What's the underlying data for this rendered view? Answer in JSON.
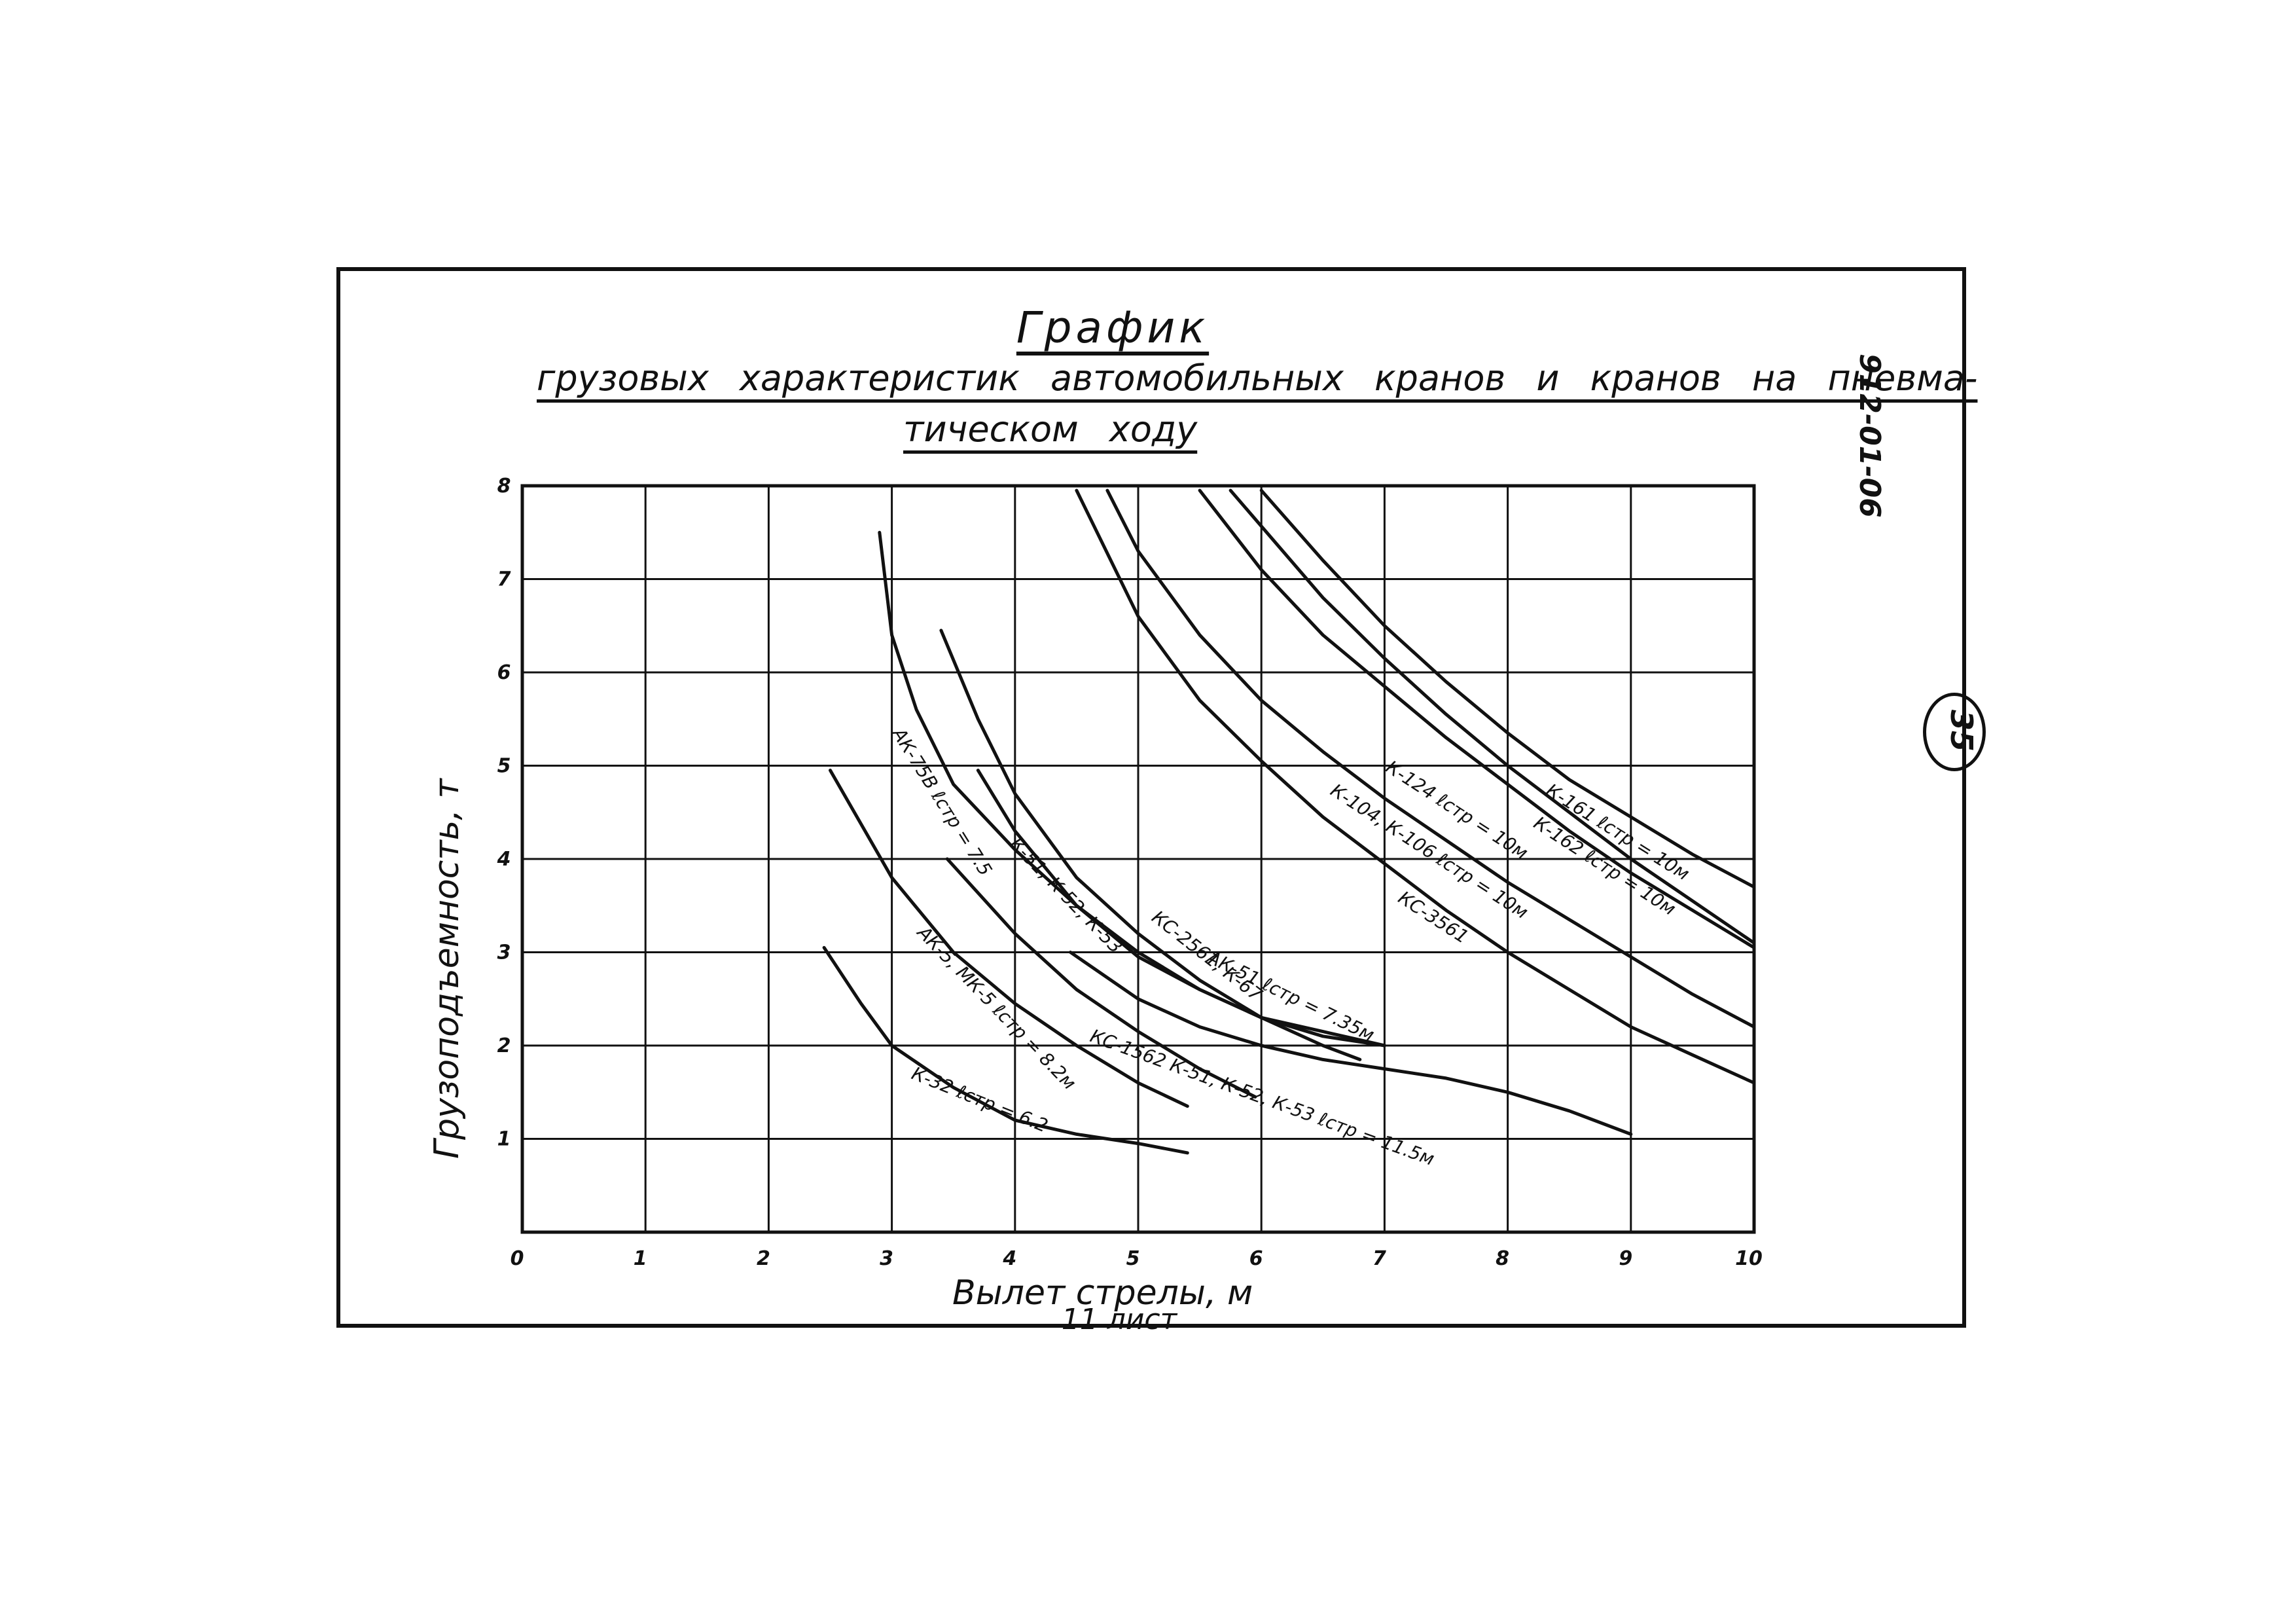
{
  "header": {
    "title": "График",
    "subtitle_line1": "грузовых характеристик автомобильных кранов и кранов на пневма-",
    "subtitle_line2": "тическом ходу",
    "doc_number": "912-01-06",
    "page_number": "35",
    "sheet_label": "11 лист"
  },
  "chart_data": {
    "type": "line",
    "title": "График грузовых характеристик автомобильных кранов и кранов на пневматическом ходу",
    "xlabel": "Вылет стрелы, м",
    "ylabel": "Грузоподъемность, т",
    "xlim": [
      0,
      10
    ],
    "ylim": [
      0,
      8
    ],
    "x_ticks": [
      "0",
      "1",
      "2",
      "3",
      "4",
      "5",
      "6",
      "7",
      "8",
      "9",
      "10"
    ],
    "y_ticks": [
      "1",
      "2",
      "3",
      "4",
      "5",
      "6",
      "7",
      "8"
    ],
    "grid": true,
    "series": [
      {
        "name": "К-161  ℓстр = 10м",
        "label_at": [
          8.3,
          4.7
        ],
        "label_angle": 32,
        "x": [
          6.0,
          6.5,
          7.0,
          7.5,
          8.0,
          8.5,
          9.0,
          9.5,
          10.0
        ],
        "y": [
          7.95,
          7.2,
          6.5,
          5.9,
          5.35,
          4.85,
          4.45,
          4.05,
          3.7
        ]
      },
      {
        "name": "К-162  ℓстр = 10м",
        "label_at": [
          8.2,
          4.35
        ],
        "label_angle": 33,
        "x": [
          5.75,
          6.5,
          7.0,
          7.5,
          8.0,
          8.5,
          9.0,
          9.5,
          10.0
        ],
        "y": [
          7.95,
          6.8,
          6.15,
          5.55,
          5.0,
          4.5,
          4.0,
          3.55,
          3.1
        ]
      },
      {
        "name": "К-124  ℓстр = 10м",
        "label_at": [
          7.0,
          4.95
        ],
        "label_angle": 33,
        "x": [
          5.5,
          6.0,
          6.5,
          7.0,
          7.5,
          8.0,
          8.5,
          9.0,
          9.5,
          10.0
        ],
        "y": [
          7.95,
          7.1,
          6.4,
          5.85,
          5.3,
          4.8,
          4.3,
          3.85,
          3.45,
          3.05
        ]
      },
      {
        "name": "К-104, К-106  ℓстр = 10м",
        "label_at": [
          6.55,
          4.7
        ],
        "label_angle": 33,
        "x": [
          4.75,
          5.0,
          5.5,
          6.0,
          6.5,
          7.0,
          7.5,
          8.0,
          8.5,
          9.0,
          9.5,
          10.0
        ],
        "y": [
          7.95,
          7.3,
          6.4,
          5.7,
          5.15,
          4.65,
          4.2,
          3.75,
          3.35,
          2.95,
          2.55,
          2.2
        ]
      },
      {
        "name": "КС-3561",
        "label_at": [
          7.1,
          3.55
        ],
        "label_angle": 33,
        "x": [
          4.5,
          5.0,
          5.5,
          6.0,
          6.5,
          7.0,
          7.5,
          8.0,
          8.5,
          9.0,
          9.5,
          10.0
        ],
        "y": [
          7.95,
          6.6,
          5.7,
          5.05,
          4.45,
          3.95,
          3.45,
          3.0,
          2.6,
          2.2,
          1.9,
          1.6
        ]
      },
      {
        "name": "АК-75В  ℓстр = 7.5",
        "label_at": [
          3.0,
          5.35
        ],
        "label_angle": 58,
        "x": [
          2.9,
          3.0,
          3.2,
          3.5,
          4.0,
          4.5,
          5.0,
          5.5,
          6.0,
          6.5,
          7.0
        ],
        "y": [
          7.5,
          6.4,
          5.6,
          4.8,
          4.1,
          3.5,
          3.0,
          2.6,
          2.3,
          2.15,
          2.0
        ]
      },
      {
        "name": "К-51, К-52, К-53",
        "label_at": [
          3.95,
          4.15
        ],
        "label_angle": 46,
        "x": [
          3.4,
          3.7,
          4.0,
          4.5,
          5.0,
          5.5,
          6.0,
          6.5,
          6.8
        ],
        "y": [
          6.45,
          5.5,
          4.7,
          3.8,
          3.2,
          2.7,
          2.3,
          2.0,
          1.85
        ]
      },
      {
        "name": "КС-2561, К-67",
        "label_at": [
          5.1,
          3.35
        ],
        "label_angle": 38,
        "x": [
          3.7,
          4.0,
          4.5,
          5.0,
          5.5,
          6.0,
          6.5,
          7.0
        ],
        "y": [
          4.95,
          4.3,
          3.5,
          2.95,
          2.6,
          2.3,
          2.1,
          2.0
        ]
      },
      {
        "name": "АК-5, МК-5  ℓстр = 8.2м",
        "label_at": [
          3.2,
          3.2
        ],
        "label_angle": 46,
        "x": [
          2.5,
          3.0,
          3.5,
          4.0,
          4.5,
          5.0,
          5.4
        ],
        "y": [
          4.95,
          3.8,
          3.0,
          2.45,
          2.0,
          1.6,
          1.35
        ]
      },
      {
        "name": "АК-51  ℓстр = 7.35м",
        "label_at": [
          5.55,
          2.9
        ],
        "label_angle": 26,
        "x": [
          3.45,
          4.0,
          4.5,
          5.0,
          5.5,
          5.95
        ],
        "y": [
          4.0,
          3.2,
          2.6,
          2.15,
          1.75,
          1.45
        ]
      },
      {
        "name": "КС-1562  К-51, К-52, К-53  ℓстр = 11.5м",
        "label_at": [
          4.6,
          2.05
        ],
        "label_angle": 20,
        "x": [
          4.45,
          5.0,
          5.5,
          6.0,
          6.5,
          7.0,
          7.5,
          8.0,
          8.5,
          9.0
        ],
        "y": [
          3.0,
          2.5,
          2.2,
          2.0,
          1.85,
          1.75,
          1.65,
          1.5,
          1.3,
          1.05
        ]
      },
      {
        "name": "К-32  ℓстр = 6.2",
        "label_at": [
          3.15,
          1.65
        ],
        "label_angle": 22,
        "x": [
          2.45,
          2.75,
          3.0,
          3.5,
          4.0,
          4.5,
          5.0,
          5.4
        ],
        "y": [
          3.05,
          2.45,
          2.0,
          1.55,
          1.2,
          1.05,
          0.95,
          0.85
        ]
      }
    ]
  }
}
